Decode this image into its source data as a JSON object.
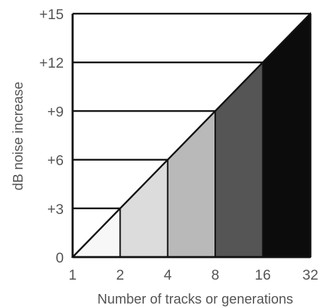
{
  "chart_data": {
    "type": "area",
    "title": "",
    "xlabel": "Number of tracks or generations",
    "ylabel": "dB noise increase",
    "x_scale": "log2",
    "x_ticks": [
      1,
      2,
      4,
      8,
      16,
      32
    ],
    "x_tick_labels": [
      "1",
      "2",
      "4",
      "8",
      "16",
      "32"
    ],
    "y_ticks": [
      0,
      3,
      6,
      9,
      12,
      15
    ],
    "y_tick_labels": [
      "0",
      "+3",
      "+6",
      "+9",
      "+12",
      "+15"
    ],
    "xlim": [
      1,
      32
    ],
    "ylim": [
      0,
      15
    ],
    "grid": false,
    "series": [
      {
        "x": [
          1,
          2,
          4,
          8,
          16,
          32
        ],
        "y": [
          0,
          3,
          6,
          9,
          12,
          15
        ]
      }
    ],
    "bands": [
      {
        "x_from": 1,
        "x_to": 2,
        "step_y": 3,
        "color": "#f7f7f7"
      },
      {
        "x_from": 2,
        "x_to": 4,
        "step_y": 6,
        "color": "#dcdcdc"
      },
      {
        "x_from": 4,
        "x_to": 8,
        "step_y": 9,
        "color": "#b9b9b9"
      },
      {
        "x_from": 8,
        "x_to": 16,
        "step_y": 12,
        "color": "#555555"
      },
      {
        "x_from": 16,
        "x_to": 32,
        "step_y": 15,
        "color": "#0c0c0c"
      }
    ],
    "colors": {
      "line": "#111111",
      "text": "#555555",
      "background": "#ffffff"
    }
  }
}
